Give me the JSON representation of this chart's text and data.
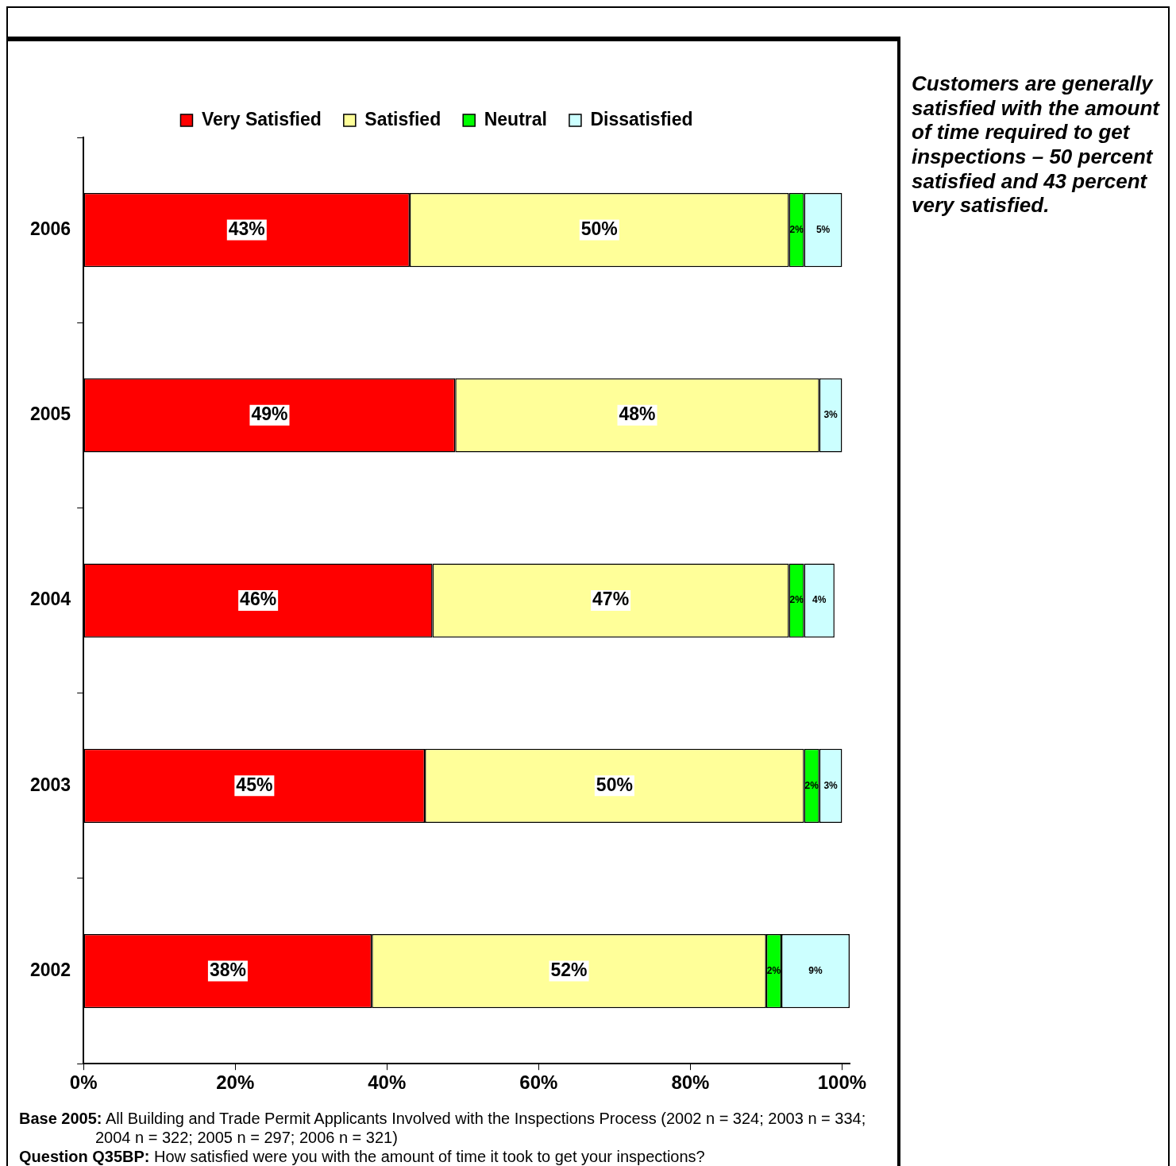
{
  "chart_data": {
    "type": "bar",
    "orientation": "horizontal",
    "stacked": true,
    "categories": [
      "2006",
      "2005",
      "2004",
      "2003",
      "2002"
    ],
    "series": [
      {
        "name": "Very Satisfied",
        "color": "#ff0000",
        "values": [
          43,
          49,
          46,
          45,
          38
        ],
        "value_labels": [
          "43%",
          "49%",
          "46%",
          "45%",
          "38%"
        ]
      },
      {
        "name": "Satisfied",
        "color": "#ffff99",
        "values": [
          50,
          48,
          47,
          50,
          52
        ],
        "value_labels": [
          "50%",
          "48%",
          "47%",
          "50%",
          "52%"
        ]
      },
      {
        "name": "Neutral",
        "color": "#00ff00",
        "values": [
          2,
          null,
          2,
          2,
          2
        ],
        "value_labels": [
          "2%",
          null,
          "2%",
          "2%",
          "2%"
        ]
      },
      {
        "name": "Dissatisfied",
        "color": "#ccffff",
        "values": [
          5,
          3,
          4,
          3,
          9
        ],
        "value_labels": [
          "5%",
          "3%",
          "4%",
          "3%",
          "9%"
        ]
      }
    ],
    "xlim": [
      0,
      101
    ],
    "xticks": [
      {
        "value": 0,
        "label": "0%"
      },
      {
        "value": 20,
        "label": "20%"
      },
      {
        "value": 40,
        "label": "40%"
      },
      {
        "value": 60,
        "label": "60%"
      },
      {
        "value": 80,
        "label": "80%"
      },
      {
        "value": 100,
        "label": "100%"
      }
    ],
    "legend": "top",
    "annotations": [
      "Customers are generally satisfied with the amount of time required to get inspections – 50 percent satisfied and 43 percent very satisfied.",
      "Base 2005: All Building and Trade Permit Applicants Involved with the Inspections Process (2002 n = 324; 2003 n = 334; 2004 n = 322; 2005 n = 297; 2006 n = 321)",
      "Question Q35BP: How satisfied were you with the amount of time it took to get your inspections?"
    ]
  }
}
